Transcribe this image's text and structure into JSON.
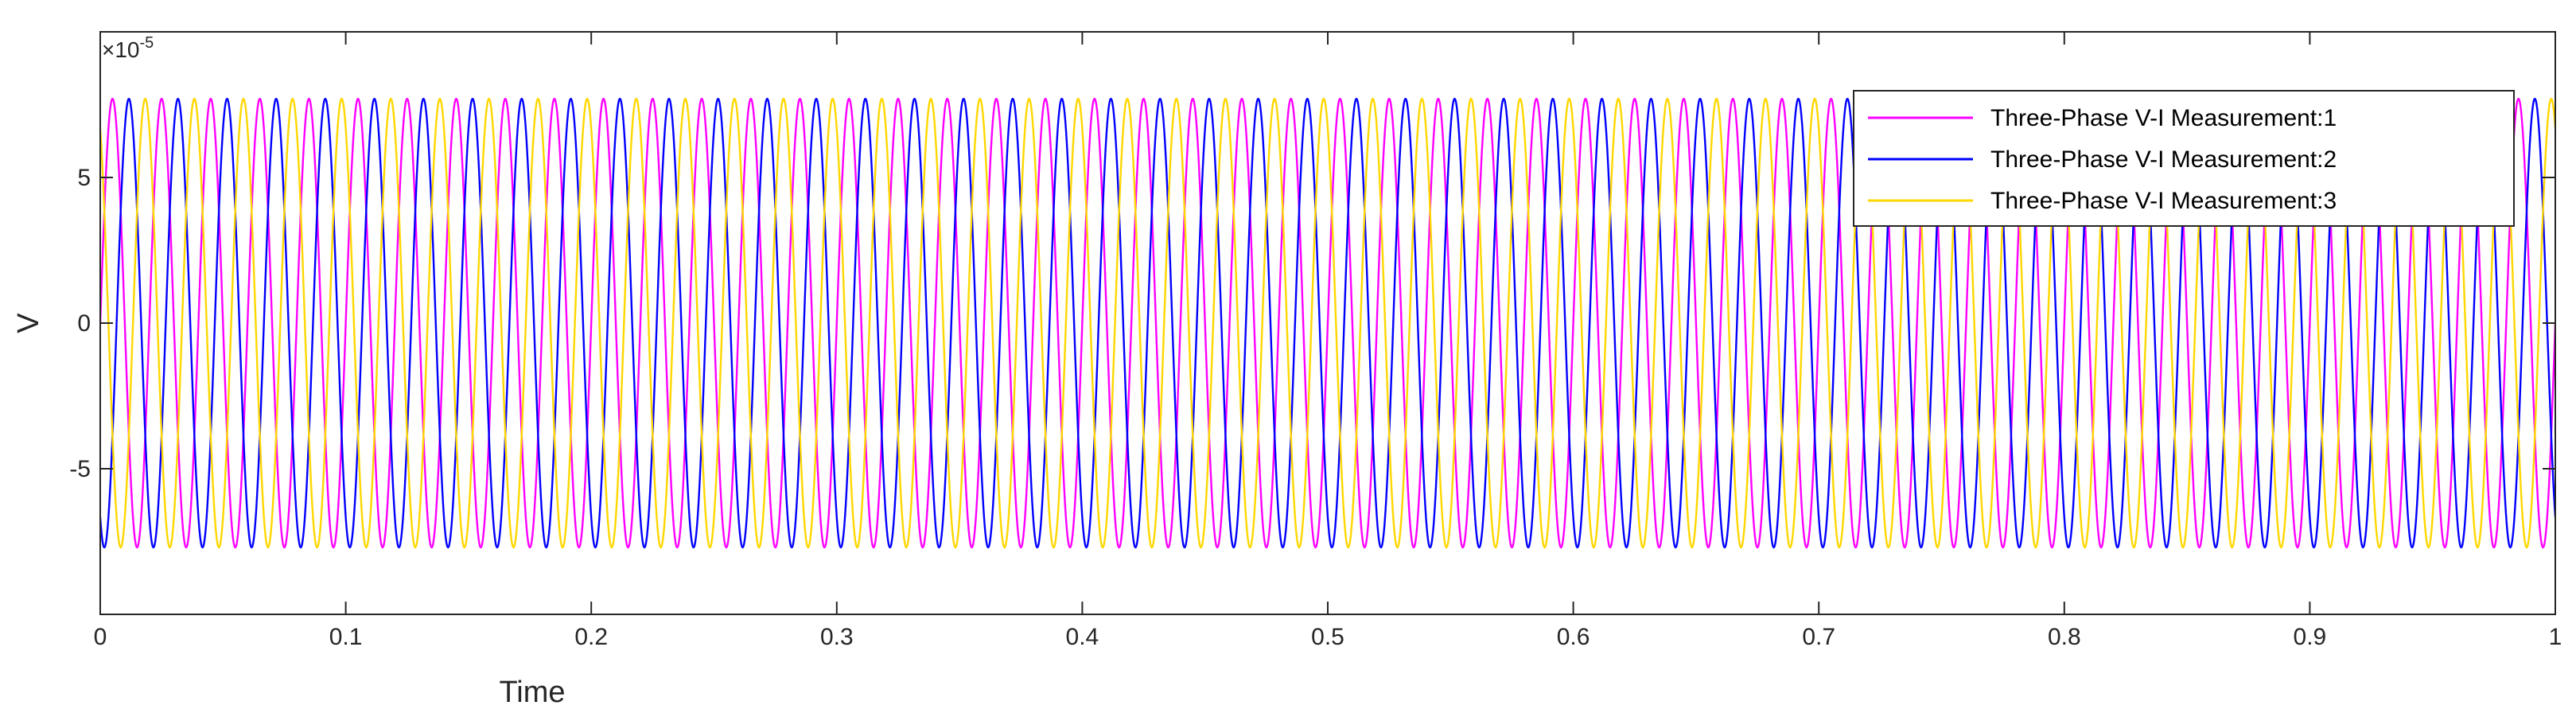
{
  "chart_data": {
    "type": "line",
    "title": "",
    "xlabel": "Time",
    "ylabel": "V",
    "xlim": [
      0,
      1
    ],
    "ylim": [
      -0.0001,
      0.0001
    ],
    "x_ticks": [
      0,
      0.1,
      0.2,
      0.3,
      0.4,
      0.5,
      0.6,
      0.7,
      0.8,
      0.9,
      1
    ],
    "x_tick_labels": [
      "0",
      "0.1",
      "0.2",
      "0.3",
      "0.4",
      "0.5",
      "0.6",
      "0.7",
      "0.8",
      "0.9",
      "1"
    ],
    "y_ticks": [
      -5e-05,
      0,
      5e-05
    ],
    "y_tick_labels": [
      "-5",
      "0",
      "5"
    ],
    "y_exponent": {
      "base": "×10",
      "power": "-5"
    },
    "grid": false,
    "legend_position": "top-right",
    "frequency_hz": 50,
    "series": [
      {
        "name": "Three-Phase V-I Measurement:1",
        "color": "#ff00ff",
        "amplitude": 7.7e-05,
        "phase_deg": 0
      },
      {
        "name": "Three-Phase V-I Measurement:2",
        "color": "#0000ff",
        "amplitude": 7.7e-05,
        "phase_deg": -120
      },
      {
        "name": "Three-Phase V-I Measurement:3",
        "color": "#ffd700",
        "amplitude": 7.7e-05,
        "phase_deg": 120
      }
    ]
  }
}
